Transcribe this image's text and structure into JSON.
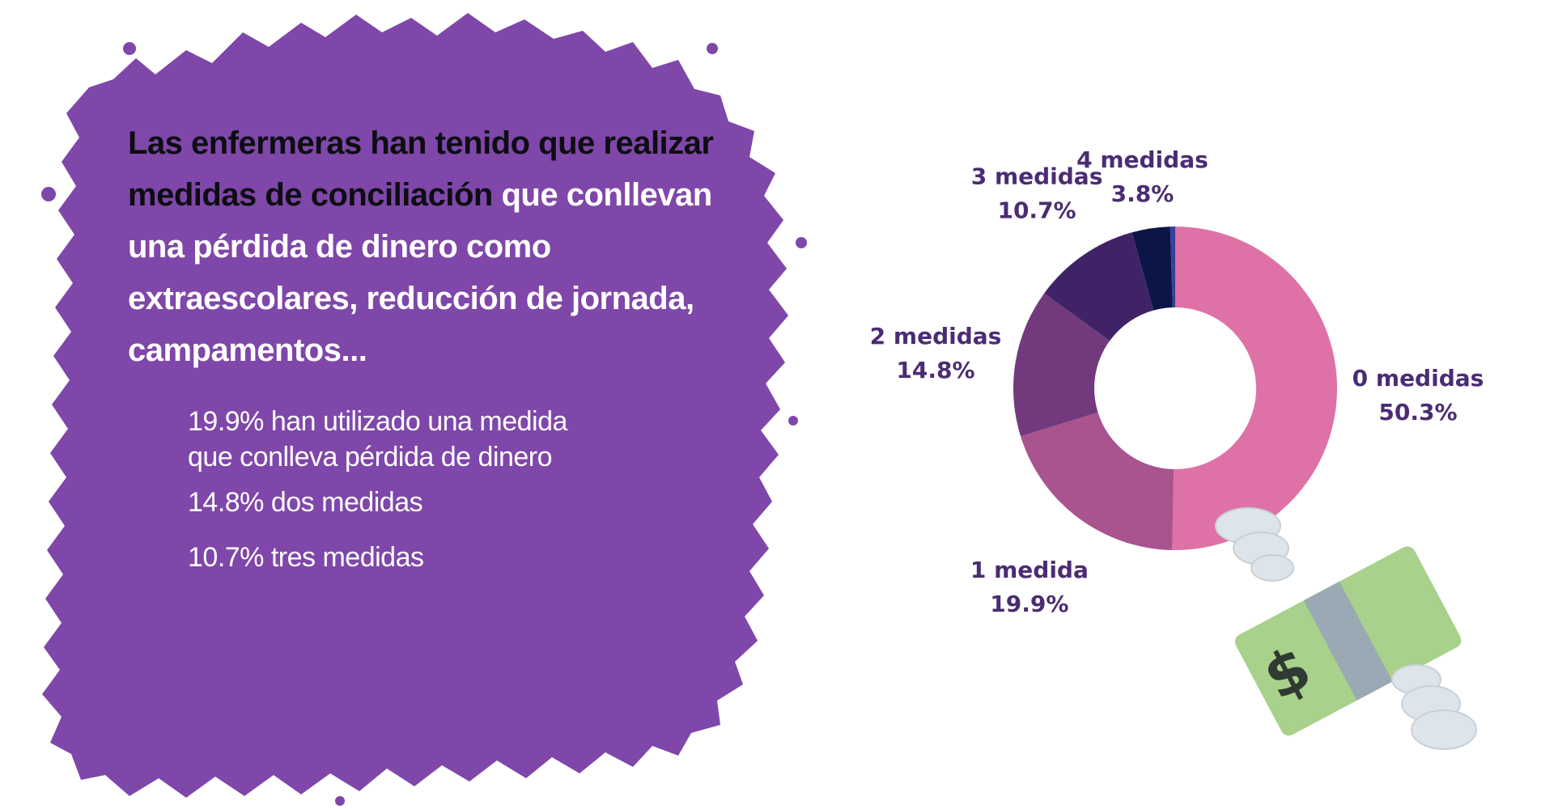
{
  "panel": {
    "bg_color": "#7f47a9",
    "headline_dark_1": "Las enfermeras han tenido que realizar",
    "headline_dark_2": "medidas de conciliación",
    "headline_light": " que conllevan una pérdida de dinero como extraescolares, reducción de jornada, campamentos...",
    "facts": [
      "19.9% han utilizado una medida",
      "que conlleva pérdida de dinero",
      "14.8% dos medidas",
      "10.7% tres medidas"
    ]
  },
  "chart_data": {
    "type": "pie",
    "variant": "donut",
    "start": "top",
    "direction": "clockwise",
    "label_color": "#4b2c73",
    "slices": [
      {
        "name": "0 medidas",
        "value": 50.3,
        "label": "50.3%",
        "color": "#de72a6"
      },
      {
        "name": "1 medida",
        "value": 19.9,
        "label": "19.9%",
        "color": "#a9538f"
      },
      {
        "name": "2 medidas",
        "value": 14.8,
        "label": "14.8%",
        "color": "#723a7c"
      },
      {
        "name": "3 medidas",
        "value": 10.7,
        "label": "10.7%",
        "color": "#402366"
      },
      {
        "name": "4 medidas",
        "value": 3.8,
        "label": "3.8%",
        "color": "#0b1646"
      },
      {
        "name": "",
        "value": 0.5,
        "label": "",
        "color": "#3a3f9a"
      }
    ]
  },
  "illustration": {
    "icon": "flying-money-icon",
    "bill_color": "#a8d18b",
    "band_color": "#9aa9b3",
    "wing_color": "#dde4ea",
    "symbol": "$"
  }
}
